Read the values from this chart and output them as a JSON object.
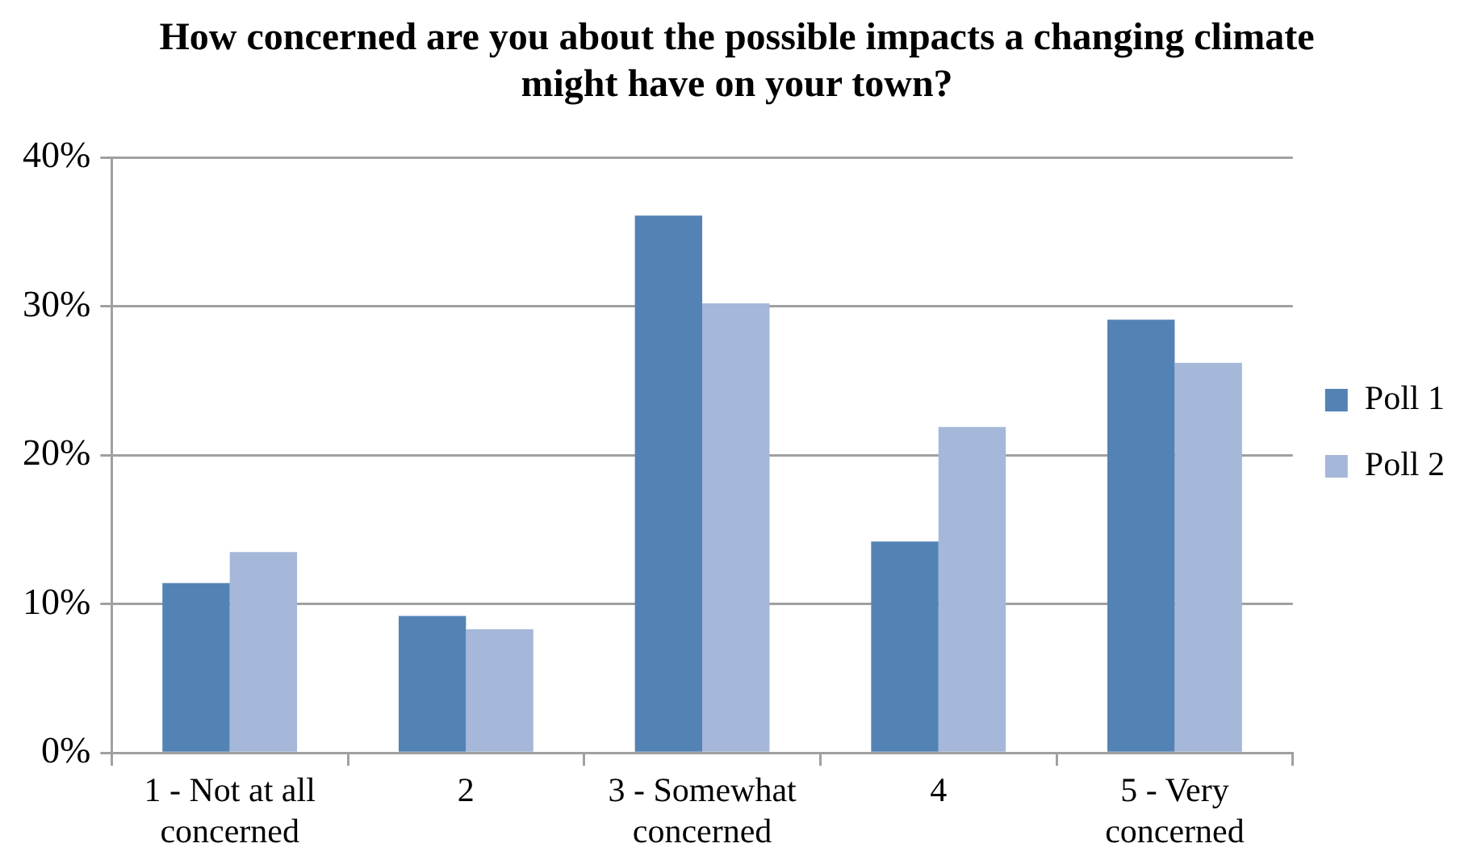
{
  "chart_data": {
    "type": "bar",
    "title": "How concerned are you about the possible impacts a changing climate might have on your town?",
    "categories": [
      "1 - Not at all concerned",
      "2",
      "3 - Somewhat concerned",
      "4",
      "5 - Very concerned"
    ],
    "series": [
      {
        "name": "Poll 1",
        "color": "#5383b5",
        "values": [
          11.4,
          9.2,
          36.1,
          14.2,
          29.1
        ]
      },
      {
        "name": "Poll 2",
        "color": "#a5b8d9",
        "values": [
          13.5,
          8.3,
          30.2,
          21.9,
          26.2
        ]
      }
    ],
    "ylim": [
      0,
      40
    ],
    "yticks": [
      {
        "value": 0,
        "label": "0%"
      },
      {
        "value": 10,
        "label": "10%"
      },
      {
        "value": 20,
        "label": "20%"
      },
      {
        "value": 30,
        "label": "30%"
      },
      {
        "value": 40,
        "label": "40%"
      }
    ],
    "grid": "y",
    "legend": "right"
  }
}
